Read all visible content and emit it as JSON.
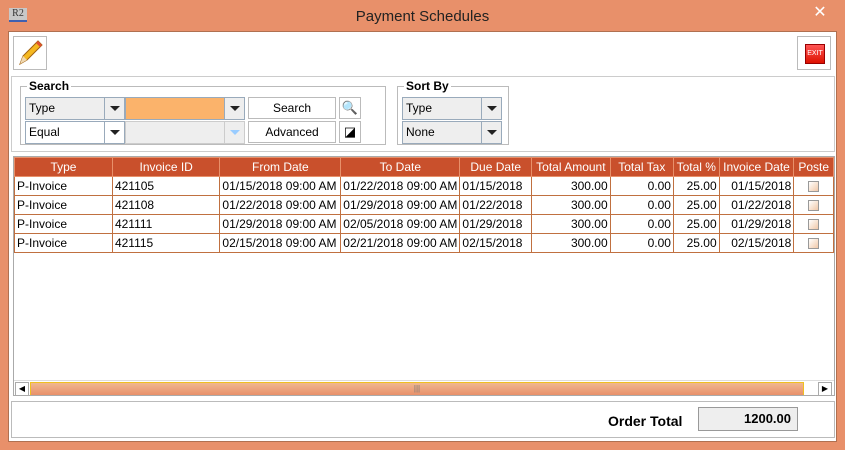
{
  "window": {
    "title": "Payment Schedules",
    "app_icon": "R2",
    "close": "✕"
  },
  "toolbar": {
    "edit_icon": "pencil-icon",
    "exit_label": "EXIT"
  },
  "search": {
    "legend": "Search",
    "field": "Type",
    "operator": "Equal",
    "value": "",
    "search_label": "Search",
    "advanced_label": "Advanced",
    "value_bg": "#fbb36b"
  },
  "sort": {
    "legend": "Sort By",
    "primary": "Type",
    "secondary": "None"
  },
  "table": {
    "columns": [
      "Type",
      "Invoice ID",
      "From Date",
      "To Date",
      "Due Date",
      "Total Amount",
      "Total Tax",
      "Total %",
      "Invoice Date",
      "Poste"
    ],
    "rows": [
      [
        "P-Invoice",
        "421105",
        "01/15/2018 09:00 AM",
        "01/22/2018 09:00 AM",
        "01/15/2018",
        "300.00",
        "0.00",
        "25.00",
        "01/15/2018",
        false
      ],
      [
        "P-Invoice",
        "421108",
        "01/22/2018 09:00 AM",
        "01/29/2018 09:00 AM",
        "01/22/2018",
        "300.00",
        "0.00",
        "25.00",
        "01/22/2018",
        false
      ],
      [
        "P-Invoice",
        "421111",
        "01/29/2018 09:00 AM",
        "02/05/2018 09:00 AM",
        "01/29/2018",
        "300.00",
        "0.00",
        "25.00",
        "01/29/2018",
        false
      ],
      [
        "P-Invoice",
        "421115",
        "02/15/2018 09:00 AM",
        "02/21/2018 09:00 AM",
        "02/15/2018",
        "300.00",
        "0.00",
        "25.00",
        "02/15/2018",
        false
      ]
    ]
  },
  "footer": {
    "order_total_label": "Order Total",
    "order_total": "1200.00"
  }
}
